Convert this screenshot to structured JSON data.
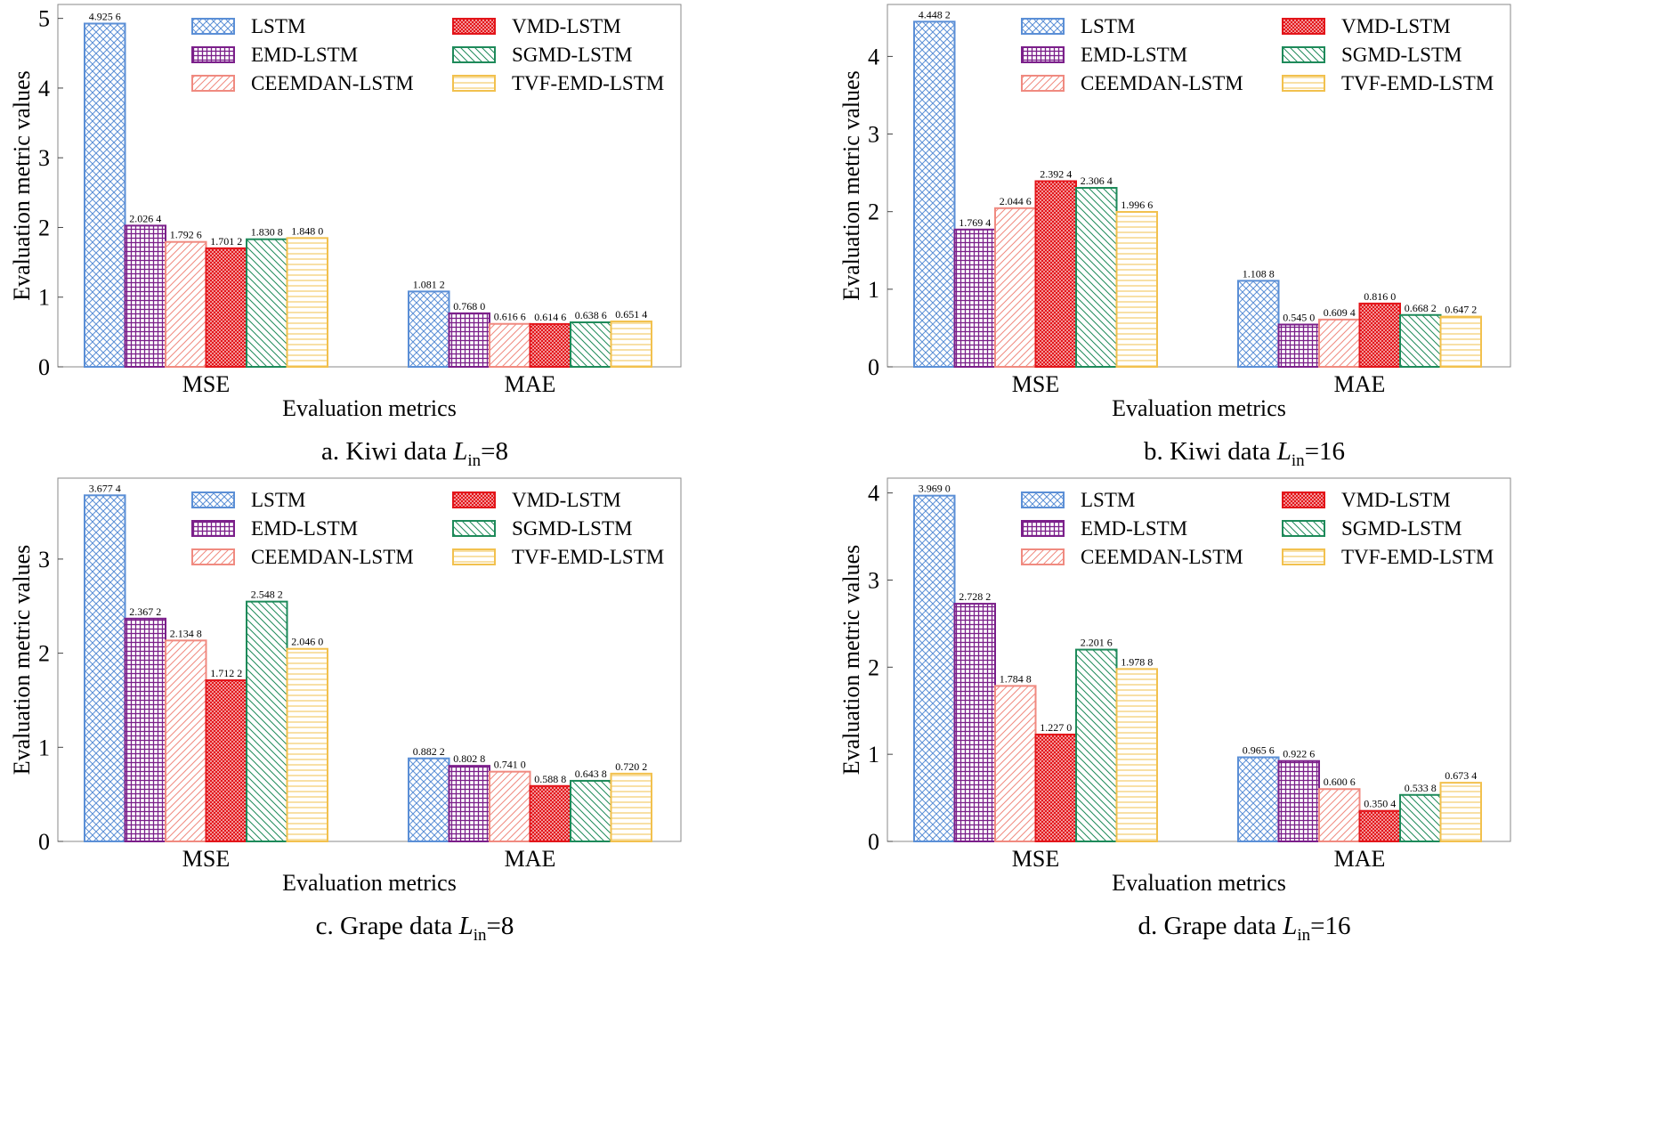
{
  "legend_entries": [
    "LSTM",
    "VMD-LSTM",
    "EMD-LSTM",
    "SGMD-LSTM",
    "CEEMDAN-LSTM",
    "TVF-EMD-LSTM"
  ],
  "series_styles": {
    "LSTM": {
      "color": "#5b8fd6",
      "pattern": "crosshatch"
    },
    "EMD-LSTM": {
      "color": "#7b1f8a",
      "pattern": "grid"
    },
    "CEEMDAN-LSTM": {
      "color": "#f08a80",
      "pattern": "diagonal-up"
    },
    "VMD-LSTM": {
      "color": "#e3151a",
      "pattern": "dots"
    },
    "SGMD-LSTM": {
      "color": "#1e8a5a",
      "pattern": "diagonal-down"
    },
    "TVF-EMD-LSTM": {
      "color": "#f2c14e",
      "pattern": "horizontal"
    }
  },
  "chart_data": [
    {
      "type": "bar",
      "caption_prefix": "a. Kiwi data ",
      "caption_var": "L",
      "caption_sub": "in",
      "caption_suffix": "=8",
      "xlabel": "Evaluation metrics",
      "ylabel": "Evaluation metric values",
      "categories": [
        "MSE",
        "MAE"
      ],
      "ylim": [
        0,
        5.2
      ],
      "yticks": [
        0,
        1,
        2,
        3,
        4,
        5
      ],
      "legend_position": "top",
      "series": [
        {
          "name": "LSTM",
          "values": [
            4.9256,
            1.0812
          ],
          "labels": [
            "4.925 6",
            "1.081 2"
          ]
        },
        {
          "name": "EMD-LSTM",
          "values": [
            2.0264,
            0.768
          ],
          "labels": [
            "2.026 4",
            "0.768 0"
          ]
        },
        {
          "name": "CEEMDAN-LSTM",
          "values": [
            1.7926,
            0.6166
          ],
          "labels": [
            "1.792 6",
            "0.616 6"
          ]
        },
        {
          "name": "VMD-LSTM",
          "values": [
            1.7012,
            0.6146
          ],
          "labels": [
            "1.701 2",
            "0.614 6"
          ]
        },
        {
          "name": "SGMD-LSTM",
          "values": [
            1.8308,
            0.6386
          ],
          "labels": [
            "1.830 8",
            "0.638 6"
          ]
        },
        {
          "name": "TVF-EMD-LSTM",
          "values": [
            1.848,
            0.6514
          ],
          "labels": [
            "1.848 0",
            "0.651 4"
          ]
        }
      ]
    },
    {
      "type": "bar",
      "caption_prefix": "b. Kiwi data ",
      "caption_var": "L",
      "caption_sub": "in",
      "caption_suffix": "=16",
      "xlabel": "Evaluation metrics",
      "ylabel": "Evaluation metric values",
      "categories": [
        "MSE",
        "MAE"
      ],
      "ylim": [
        0,
        4.67
      ],
      "yticks": [
        0,
        1,
        2,
        3,
        4
      ],
      "legend_position": "top",
      "series": [
        {
          "name": "LSTM",
          "values": [
            4.4482,
            1.1088
          ],
          "labels": [
            "4.448 2",
            "1.108 8"
          ]
        },
        {
          "name": "EMD-LSTM",
          "values": [
            1.7694,
            0.545
          ],
          "labels": [
            "1.769 4",
            "0.545 0"
          ]
        },
        {
          "name": "CEEMDAN-LSTM",
          "values": [
            2.0446,
            0.6094
          ],
          "labels": [
            "2.044 6",
            "0.609 4"
          ]
        },
        {
          "name": "VMD-LSTM",
          "values": [
            2.3924,
            0.816
          ],
          "labels": [
            "2.392 4",
            "0.816 0"
          ]
        },
        {
          "name": "SGMD-LSTM",
          "values": [
            2.3064,
            0.6682
          ],
          "labels": [
            "2.306 4",
            "0.668 2"
          ]
        },
        {
          "name": "TVF-EMD-LSTM",
          "values": [
            1.9966,
            0.6472
          ],
          "labels": [
            "1.996 6",
            "0.647 2"
          ]
        }
      ]
    },
    {
      "type": "bar",
      "caption_prefix": "c. Grape data ",
      "caption_var": "L",
      "caption_sub": "in",
      "caption_suffix": "=8",
      "xlabel": "Evaluation metrics",
      "ylabel": "Evaluation metric values",
      "categories": [
        "MSE",
        "MAE"
      ],
      "ylim": [
        0,
        3.86
      ],
      "yticks": [
        0,
        1,
        2,
        3
      ],
      "legend_position": "top",
      "series": [
        {
          "name": "LSTM",
          "values": [
            3.6774,
            0.8822
          ],
          "labels": [
            "3.677 4",
            "0.882 2"
          ]
        },
        {
          "name": "EMD-LSTM",
          "values": [
            2.3672,
            0.8028
          ],
          "labels": [
            "2.367 2",
            "0.802 8"
          ]
        },
        {
          "name": "CEEMDAN-LSTM",
          "values": [
            2.1348,
            0.741
          ],
          "labels": [
            "2.134 8",
            "0.741 0"
          ]
        },
        {
          "name": "VMD-LSTM",
          "values": [
            1.7122,
            0.5888
          ],
          "labels": [
            "1.712 2",
            "0.588 8"
          ]
        },
        {
          "name": "SGMD-LSTM",
          "values": [
            2.5482,
            0.6438
          ],
          "labels": [
            "2.548 2",
            "0.643 8"
          ]
        },
        {
          "name": "TVF-EMD-LSTM",
          "values": [
            2.046,
            0.7202
          ],
          "labels": [
            "2.046 0",
            "0.720 2"
          ]
        }
      ]
    },
    {
      "type": "bar",
      "caption_prefix": "d. Grape data ",
      "caption_var": "L",
      "caption_sub": "in",
      "caption_suffix": "=16",
      "xlabel": "Evaluation metrics",
      "ylabel": "Evaluation metric values",
      "categories": [
        "MSE",
        "MAE"
      ],
      "ylim": [
        0,
        4.17
      ],
      "yticks": [
        0,
        1,
        2,
        3,
        4
      ],
      "legend_position": "top",
      "series": [
        {
          "name": "LSTM",
          "values": [
            3.969,
            0.9656
          ],
          "labels": [
            "3.969 0",
            "0.965 6"
          ]
        },
        {
          "name": "EMD-LSTM",
          "values": [
            2.7282,
            0.9226
          ],
          "labels": [
            "2.728 2",
            "0.922 6"
          ]
        },
        {
          "name": "CEEMDAN-LSTM",
          "values": [
            1.7848,
            0.6006
          ],
          "labels": [
            "1.784 8",
            "0.600 6"
          ]
        },
        {
          "name": "VMD-LSTM",
          "values": [
            1.227,
            0.3504
          ],
          "labels": [
            "1.227 0",
            "0.350 4"
          ]
        },
        {
          "name": "SGMD-LSTM",
          "values": [
            2.2016,
            0.5338
          ],
          "labels": [
            "2.201 6",
            "0.533 8"
          ]
        },
        {
          "name": "TVF-EMD-LSTM",
          "values": [
            1.9788,
            0.6734
          ],
          "labels": [
            "1.978 8",
            "0.673 4"
          ]
        }
      ]
    }
  ]
}
